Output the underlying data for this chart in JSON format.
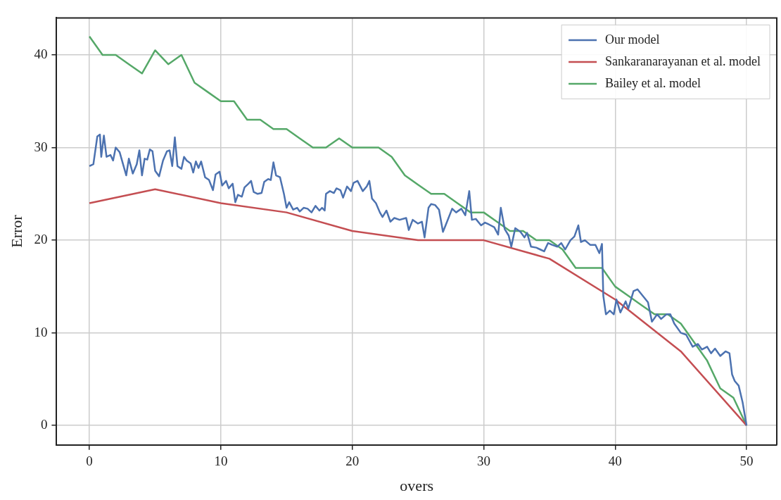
{
  "chart_data": {
    "type": "line",
    "xlabel": "overs",
    "ylabel": "Error",
    "xlim": [
      -2.5,
      52.3
    ],
    "ylim": [
      -2.1,
      44
    ],
    "xticks": [
      0,
      10,
      20,
      30,
      40,
      50
    ],
    "yticks": [
      0,
      10,
      20,
      30,
      40
    ],
    "grid": true,
    "legend": "top right",
    "marker": "none",
    "line_style": "solid",
    "series": [
      {
        "name": "Our model",
        "color": "#4c72b0",
        "x": [
          0,
          0.3,
          0.6,
          0.8,
          0.9,
          1.1,
          1.3,
          1.6,
          1.8,
          2.0,
          2.3,
          2.6,
          2.8,
          3.0,
          3.3,
          3.6,
          3.8,
          4.0,
          4.2,
          4.4,
          4.6,
          4.8,
          5.0,
          5.3,
          5.6,
          5.9,
          6.1,
          6.3,
          6.5,
          6.7,
          7.0,
          7.2,
          7.4,
          7.7,
          7.9,
          8.1,
          8.3,
          8.5,
          8.8,
          9.1,
          9.4,
          9.6,
          9.9,
          10.1,
          10.4,
          10.6,
          10.9,
          11.1,
          11.3,
          11.6,
          11.8,
          12.1,
          12.3,
          12.5,
          12.8,
          13.1,
          13.3,
          13.6,
          13.8,
          14.0,
          14.2,
          14.5,
          14.8,
          15.0,
          15.2,
          15.5,
          15.8,
          16.0,
          16.3,
          16.6,
          16.9,
          17.2,
          17.5,
          17.7,
          17.9,
          18.0,
          18.3,
          18.6,
          18.8,
          19.1,
          19.3,
          19.6,
          19.9,
          20.1,
          20.4,
          20.8,
          21.1,
          21.3,
          21.5,
          21.8,
          22.1,
          22.3,
          22.6,
          22.9,
          23.2,
          23.6,
          24.1,
          24.3,
          24.6,
          25.0,
          25.3,
          25.5,
          25.8,
          26.0,
          26.3,
          26.6,
          26.9,
          27.1,
          27.6,
          27.9,
          28.3,
          28.6,
          28.9,
          29.1,
          29.4,
          29.8,
          30.1,
          30.4,
          30.8,
          31.1,
          31.3,
          31.6,
          31.9,
          32.1,
          32.4,
          32.8,
          33.1,
          33.3,
          33.6,
          34.0,
          34.3,
          34.6,
          34.9,
          35.2,
          35.6,
          35.9,
          36.2,
          36.6,
          36.9,
          37.2,
          37.4,
          37.7,
          38.1,
          38.5,
          38.8,
          39.0,
          39.1,
          39.3,
          39.6,
          39.9,
          40.1,
          40.4,
          40.8,
          41.0,
          41.4,
          41.7,
          42.1,
          42.5,
          42.8,
          43.2,
          43.5,
          43.9,
          44.2,
          44.5,
          45.0,
          45.4,
          45.9,
          46.3,
          46.6,
          47.0,
          47.3,
          47.6,
          48.0,
          48.4,
          48.7,
          48.9,
          49.1,
          49.4,
          49.7,
          50
        ],
        "values": [
          28,
          28.2,
          31.2,
          31.4,
          29,
          31.3,
          29,
          29.2,
          28.6,
          30,
          29.5,
          28,
          27,
          28.8,
          27.2,
          28.2,
          29.7,
          27,
          28.8,
          28.7,
          29.8,
          29.6,
          27.5,
          26.9,
          28.6,
          29.6,
          29.7,
          28,
          31.1,
          28,
          27.7,
          29,
          28.6,
          28.3,
          27.3,
          28.5,
          27.8,
          28.5,
          26.8,
          26.5,
          25.4,
          27.1,
          27.4,
          25.9,
          26.4,
          25.6,
          26.1,
          24.1,
          24.9,
          24.7,
          25.7,
          26.1,
          26.4,
          25.2,
          25,
          25.1,
          26.3,
          26.6,
          26.5,
          28.4,
          27,
          26.8,
          25,
          23.5,
          24.1,
          23.3,
          23.5,
          23.1,
          23.5,
          23.4,
          23,
          23.7,
          23.2,
          23.5,
          23.2,
          25,
          25.3,
          25.1,
          25.6,
          25.4,
          24.6,
          25.8,
          25.3,
          26.2,
          26.4,
          25.3,
          25.8,
          26.4,
          24.5,
          24,
          23,
          22.5,
          23.2,
          22,
          22.4,
          22.2,
          22.4,
          21.1,
          22.2,
          21.8,
          22,
          20.3,
          23.5,
          23.9,
          23.8,
          23.3,
          20.9,
          21.6,
          23.4,
          23,
          23.4,
          22.7,
          25.3,
          22.2,
          22.3,
          21.6,
          21.9,
          21.7,
          21.4,
          20.6,
          23.5,
          21.2,
          20.5,
          19.3,
          21.3,
          20.9,
          20.3,
          20.8,
          19.3,
          19.2,
          19,
          18.8,
          19.7,
          19.5,
          19.3,
          19.7,
          19,
          20,
          20.4,
          21.6,
          19.8,
          20,
          19.5,
          19.5,
          18.6,
          19.6,
          14,
          12,
          12.4,
          12,
          13.6,
          12.2,
          13.4,
          12.6,
          14.5,
          14.7,
          14,
          13.3,
          11.2,
          12,
          11.5,
          12,
          12,
          11,
          10,
          9.8,
          8.5,
          8.8,
          8.2,
          8.5,
          7.8,
          8.3,
          7.5,
          8,
          7.8,
          5.5,
          4.8,
          4.3,
          2.5,
          0
        ]
      },
      {
        "name": "Sankaranarayanan et al. model",
        "color": "#c44e52",
        "x": [
          0,
          5,
          10,
          15,
          20,
          25,
          30,
          35,
          40,
          45,
          50
        ],
        "values": [
          24,
          25.5,
          24,
          23,
          21,
          20,
          20,
          18,
          13.6,
          8,
          0
        ]
      },
      {
        "name": "Bailey et al. model",
        "color": "#55a868",
        "x": [
          0,
          1,
          2,
          3,
          4,
          5,
          6,
          7,
          8,
          9,
          10,
          11,
          12,
          13,
          14,
          15,
          16,
          17,
          18,
          19,
          20,
          21,
          22,
          23,
          24,
          25,
          26,
          27,
          28,
          29,
          30,
          31,
          32,
          33,
          34,
          35,
          36,
          37,
          38,
          39,
          40,
          41,
          42,
          43,
          44,
          45,
          46,
          47,
          48,
          49,
          50
        ],
        "values": [
          42,
          40,
          40,
          39,
          38,
          40.5,
          39,
          40,
          37,
          36,
          35,
          35,
          33,
          33,
          32,
          32,
          31,
          30,
          30,
          31,
          30,
          30,
          30,
          29,
          27,
          26,
          25,
          25,
          24,
          23,
          23,
          22,
          21,
          21,
          20,
          20,
          19,
          17,
          17,
          17,
          15,
          14,
          13,
          12,
          12,
          11,
          9,
          7,
          4,
          3,
          0
        ]
      }
    ]
  }
}
